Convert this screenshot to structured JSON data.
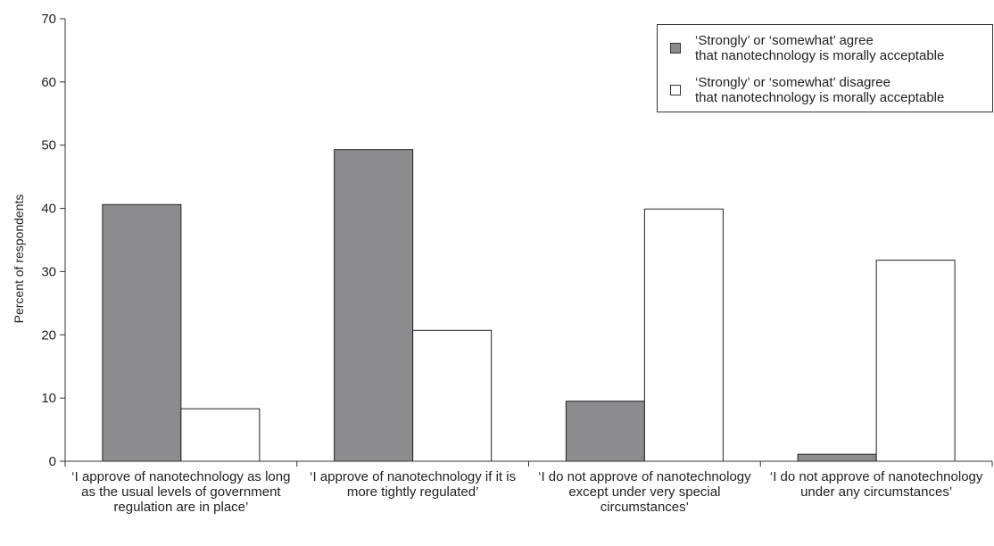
{
  "chart_data": {
    "type": "bar",
    "categories": [
      "‘I approve of nanotechnology as long as the usual levels of government regulation are in place’",
      "‘I approve of nanotechnology if it is more tightly regulated’",
      "‘I do not approve of nanotechnology except under very special circumstances’",
      "‘I do not approve of nanotechnology under any circumstances’"
    ],
    "series": [
      {
        "name": "‘Strongly’ or ‘somewhat’ agree that nanotechnology is morally acceptable",
        "legend_lines": [
          "‘Strongly’ or ‘somewhat’ agree",
          "that nanotechnology is morally acceptable"
        ],
        "values": [
          40.6,
          49.3,
          9.5,
          1.1
        ],
        "color": "#8c8c8e"
      },
      {
        "name": "‘Strongly’ or ‘somewhat’ disagree that nanotechnology is morally acceptable",
        "legend_lines": [
          "‘Strongly’ or ‘somewhat’ disagree",
          "that nanotechnology is morally acceptable"
        ],
        "values": [
          8.3,
          20.7,
          39.9,
          31.8
        ],
        "color": "#ffffff"
      }
    ],
    "title": "",
    "xlabel": "",
    "ylabel": "Percent of respondents",
    "ylim": [
      0,
      70
    ],
    "yticks": [
      0,
      10,
      20,
      30,
      40,
      50,
      60,
      70
    ],
    "grid": false,
    "legend_position": "top-right"
  }
}
